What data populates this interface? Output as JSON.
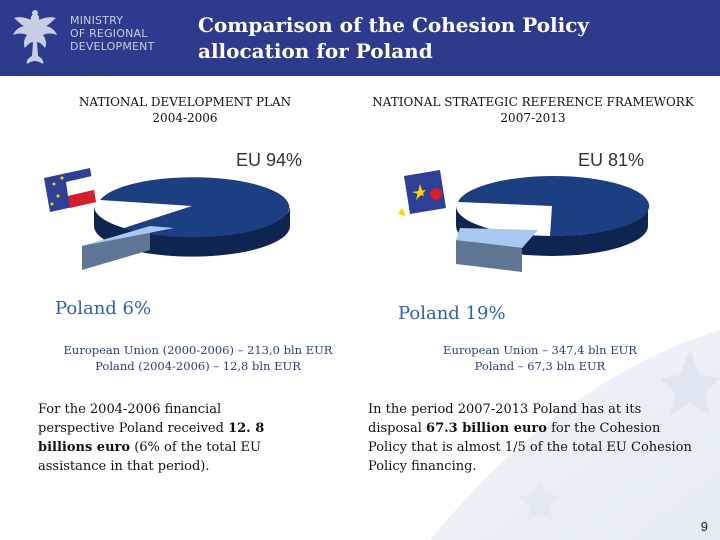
{
  "header": {
    "ministry_line1": "MINISTRY",
    "ministry_line2": "OF REGIONAL",
    "ministry_line3": "DEVELOPMENT",
    "title_line1": "Comparison of the Cohesion Policy",
    "title_line2": "allocation for Poland",
    "accent_color": "#2e3a8c"
  },
  "left": {
    "heading_line1": "NATIONAL DEVELOPMENT PLAN",
    "heading_line2": "2004-2006",
    "eu_label": "EU 94%",
    "poland_label": "Poland 6%",
    "amount_line1": "European Union (2000-2006) – 213,0 bln EUR",
    "amount_line2": "Poland (2004-2006) –   12,8 bln EUR",
    "para_part1": "For the 2004-2006 financial perspective Poland received",
    "para_bold": "12. 8 billions euro",
    "para_part2": "(6% of the total EU assistance in that period)."
  },
  "right": {
    "heading_line1": "NATIONAL STRATEGIC REFERENCE FRAMEWORK",
    "heading_line2": "2007-2013",
    "eu_label": "EU 81%",
    "poland_label": "Poland 19%",
    "amount_line1": "European Union – 347,4 bln EUR",
    "amount_line2": "Poland –   67,3 bln EUR",
    "para_part1": "In the period 2007-2013 Poland has at its disposal",
    "para_bold": "67.3 billion euro",
    "para_part2": "for the Cohesion Policy that is almost 1/5 of the total EU Cohesion Policy financing."
  },
  "chart_data": [
    {
      "type": "pie",
      "title": "",
      "slices": [
        {
          "label": "EU",
          "value": 94
        },
        {
          "label": "Poland",
          "value": 6
        }
      ]
    },
    {
      "type": "pie",
      "title": "",
      "slices": [
        {
          "label": "EU",
          "value": 81
        },
        {
          "label": "Poland",
          "value": 19
        }
      ]
    }
  ],
  "page_number": "9",
  "colors": {
    "eu_slice": "#1b3f80",
    "eu_slice_dark": "#0d2550",
    "poland_slice": "#a9c8ef",
    "poland_slice_side": "#5f7594",
    "label_blue": "#2f62a8"
  }
}
